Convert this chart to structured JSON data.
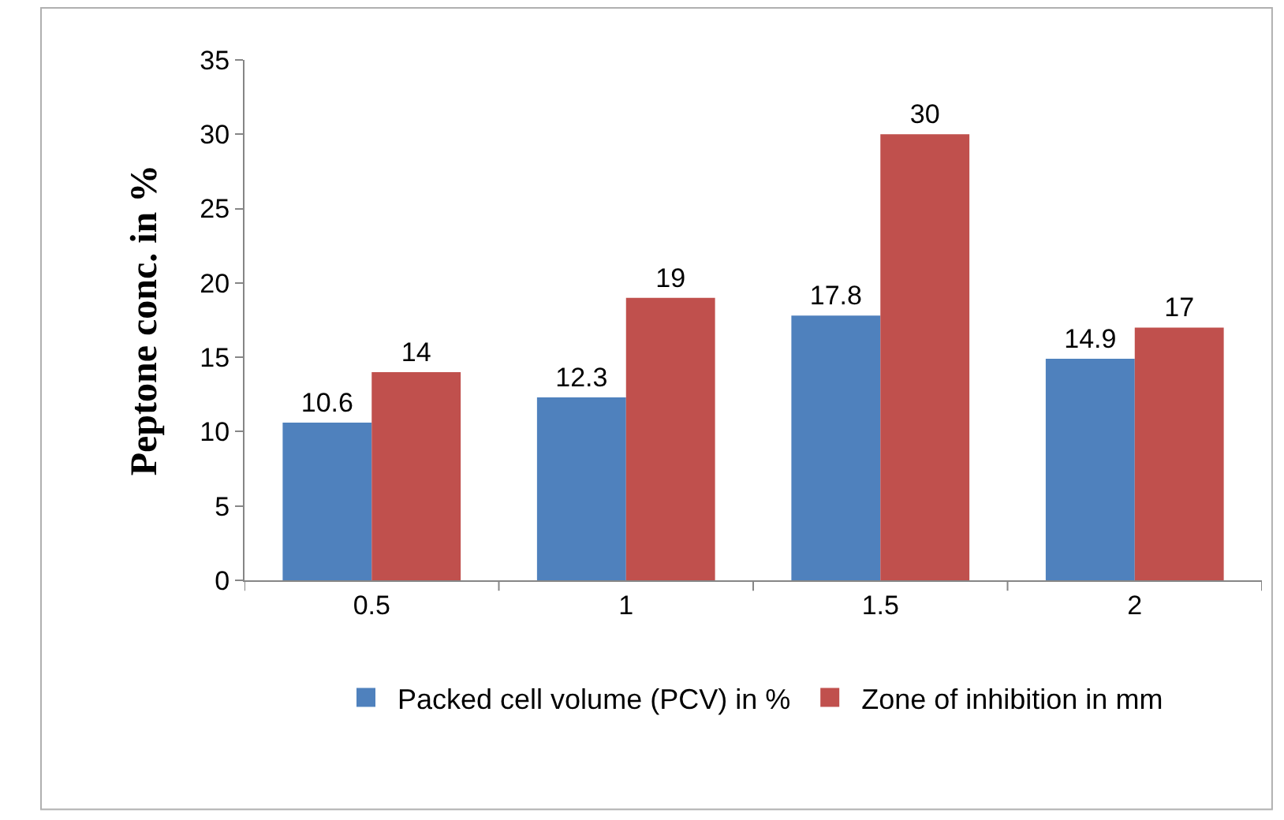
{
  "chart_data": {
    "type": "bar",
    "ylabel": "Peptone conc. in %",
    "categories": [
      "0.5",
      "1",
      "1.5",
      "2"
    ],
    "series": [
      {
        "name": "Packed cell volume (PCV) in %",
        "color": "#4f81bd",
        "values": [
          10.6,
          12.3,
          17.8,
          14.9
        ]
      },
      {
        "name": "Zone of inhibition in mm",
        "color": "#c0504d",
        "values": [
          14,
          19,
          30,
          17
        ]
      }
    ],
    "ylim": [
      0,
      35
    ],
    "yticks": [
      0,
      5,
      10,
      15,
      20,
      25,
      30,
      35
    ],
    "legend": "bottom",
    "data_labels": true
  }
}
